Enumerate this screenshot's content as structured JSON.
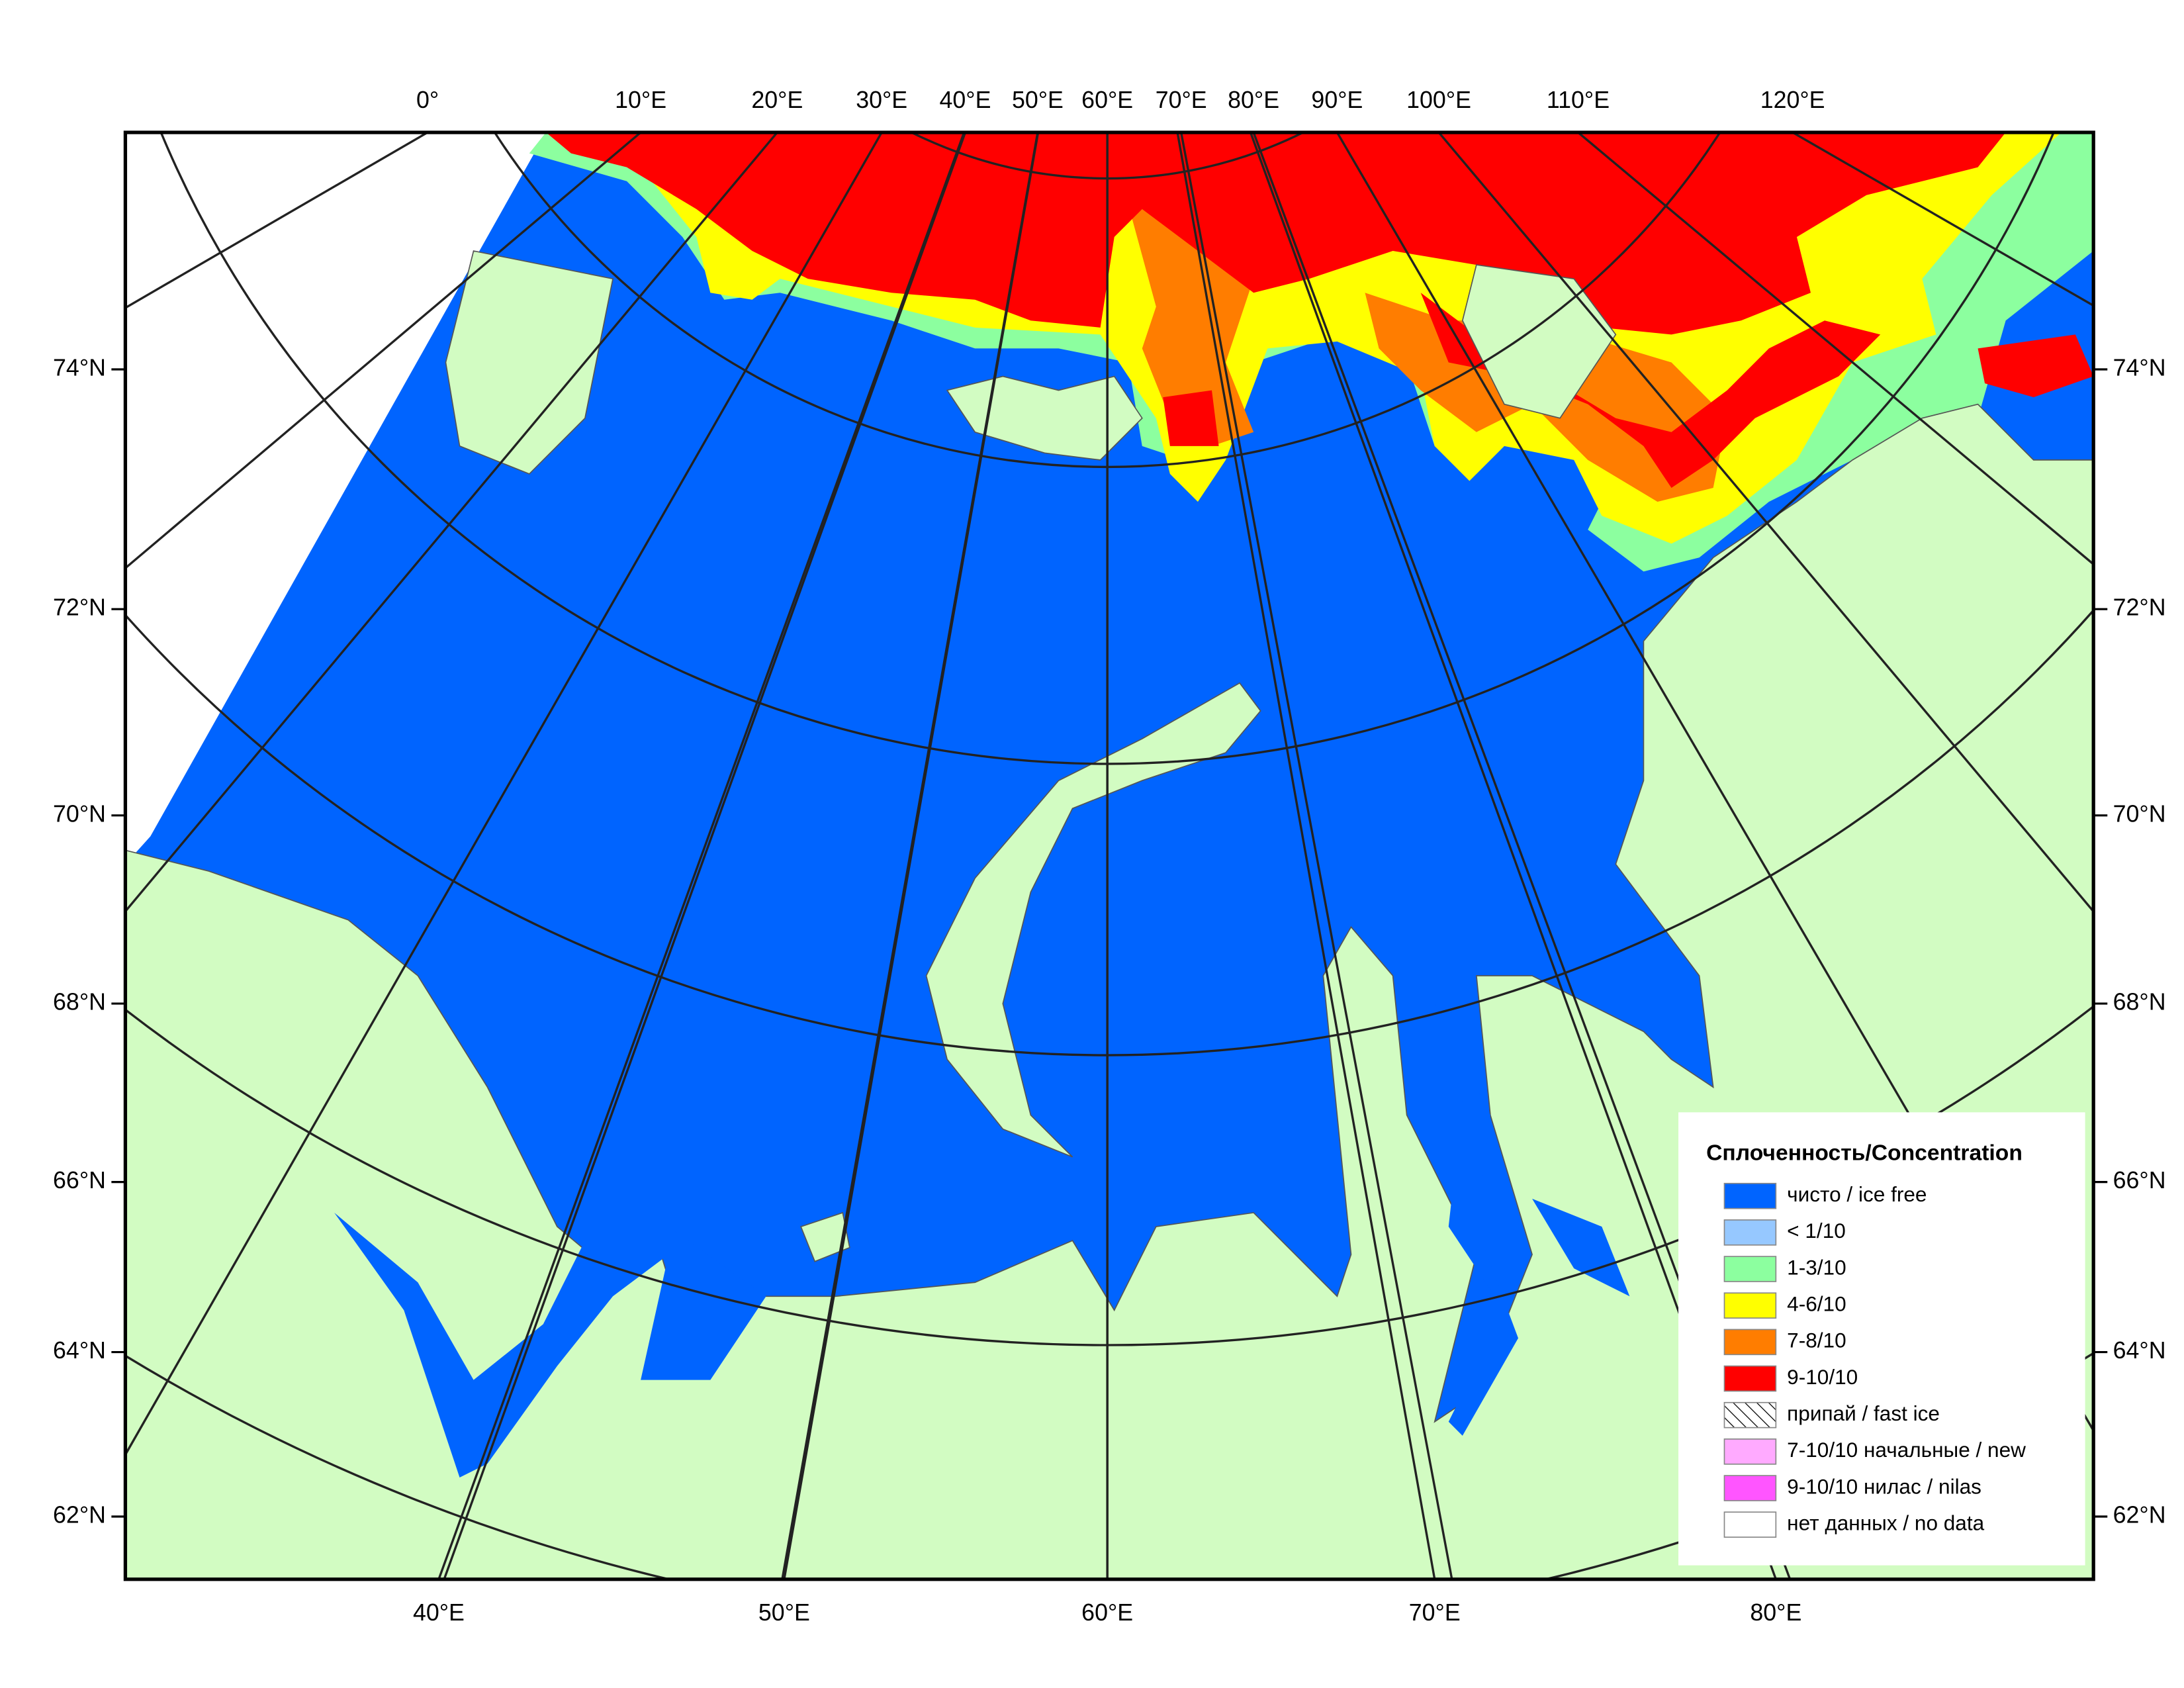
{
  "map": {
    "longitude_labels_top": [
      "0°",
      "10°E",
      "20°E",
      "30°E",
      "40°E",
      "50°E",
      "60°E",
      "70°E",
      "80°E",
      "90°E",
      "100°E",
      "110°E",
      "120°E"
    ],
    "longitude_labels_bottom": [
      "40°E",
      "50°E",
      "60°E",
      "70°E",
      "80°E"
    ],
    "latitude_labels": [
      "74°N",
      "72°N",
      "70°N",
      "68°N",
      "66°N",
      "64°N",
      "62°N"
    ]
  },
  "legend": {
    "title": "Сплоченность/Concentration",
    "items": [
      {
        "label": "чисто / ice free",
        "color": "#0064ff"
      },
      {
        "label": "< 1/10",
        "color": "#96c8ff"
      },
      {
        "label": "1-3/10",
        "color": "#8cff9f"
      },
      {
        "label": "4-6/10",
        "color": "#ffff00"
      },
      {
        "label": "7-8/10",
        "color": "#ff7d00"
      },
      {
        "label": "9-10/10",
        "color": "#ff0000"
      },
      {
        "label": "припай / fast ice",
        "color": "#ffffff",
        "hatch": true
      },
      {
        "label": "7-10/10 начальные / new",
        "color": "#ffaaff"
      },
      {
        "label": "9-10/10 нилас / nilas",
        "color": "#ff55ff"
      },
      {
        "label": "нет данных / no data",
        "color": "#ffffff"
      }
    ]
  }
}
